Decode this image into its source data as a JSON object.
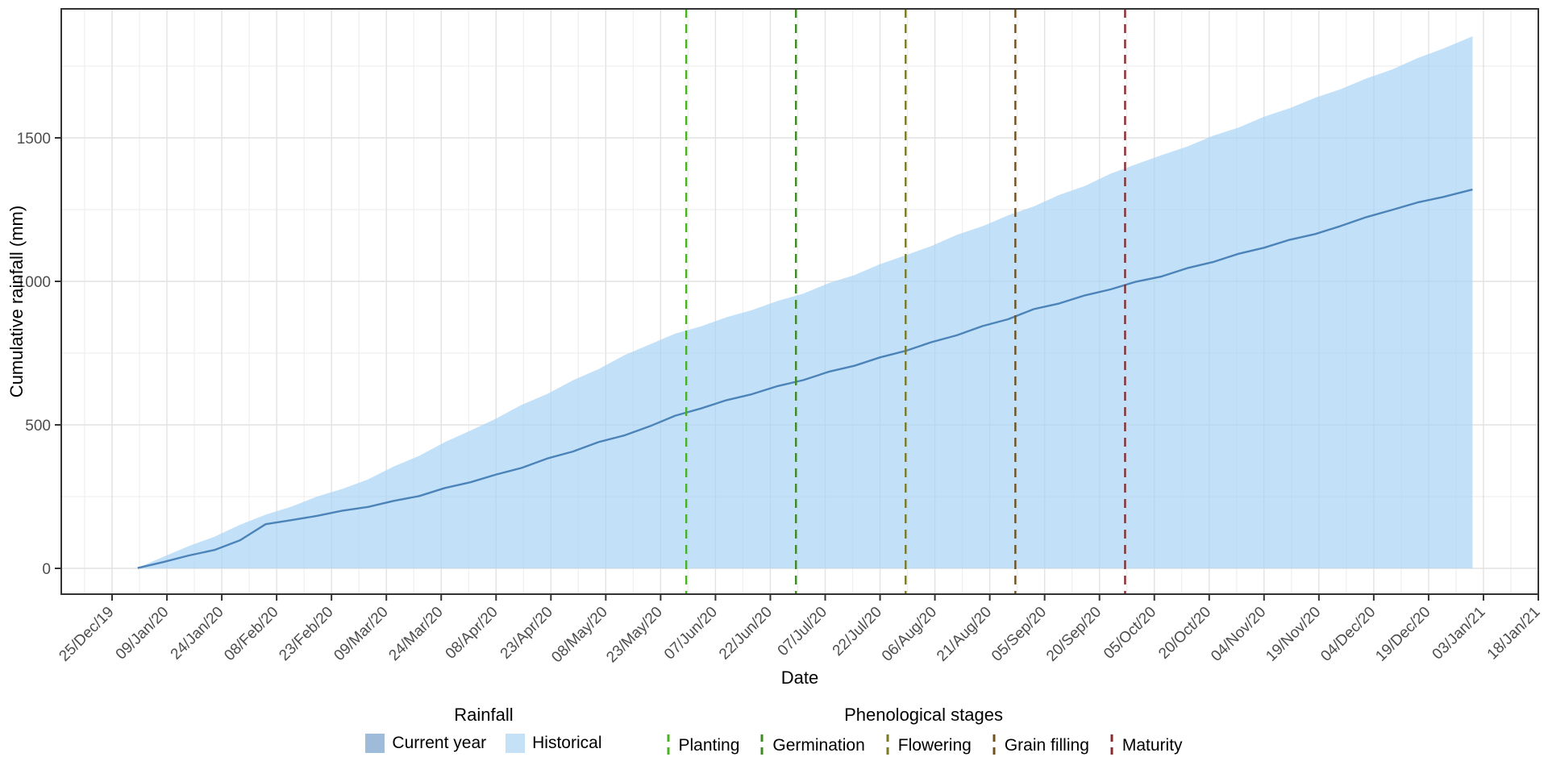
{
  "chart_data": {
    "type": "area",
    "title": "",
    "xlabel": "Date",
    "ylabel": "Cumulative rainfall (mm)",
    "x_tick_labels": [
      "25/Dec/19",
      "09/Jan/20",
      "24/Jan/20",
      "08/Feb/20",
      "23/Feb/20",
      "09/Mar/20",
      "24/Mar/20",
      "08/Apr/20",
      "23/Apr/20",
      "08/May/20",
      "23/May/20",
      "07/Jun/20",
      "22/Jun/20",
      "07/Jul/20",
      "22/Jul/20",
      "06/Aug/20",
      "21/Aug/20",
      "05/Sep/20",
      "20/Sep/20",
      "05/Oct/20",
      "20/Oct/20",
      "04/Nov/20",
      "19/Nov/20",
      "04/Dec/20",
      "19/Dec/20",
      "03/Jan/21",
      "18/Jan/21"
    ],
    "x_tick_interval_days": 15,
    "x_domain_days": [
      0,
      390
    ],
    "ylim": [
      0,
      1950
    ],
    "y_ticks": [
      0,
      500,
      1000,
      1500
    ],
    "y_minor_ticks": [
      250,
      750,
      1250,
      1750
    ],
    "grid": true,
    "legend_position": "bottom",
    "days": [
      7,
      14,
      21,
      28,
      35,
      42,
      49,
      56,
      63,
      70,
      77,
      84,
      91,
      98,
      105,
      112,
      119,
      126,
      133,
      140,
      147,
      154,
      161,
      168,
      175,
      182,
      189,
      196,
      203,
      210,
      217,
      224,
      231,
      238,
      245,
      252,
      259,
      266,
      273,
      280,
      287,
      294,
      301,
      308,
      315,
      322,
      329,
      336,
      343,
      350,
      357,
      364,
      372
    ],
    "series": [
      {
        "name": "Historical",
        "type": "area",
        "color": "#A8D4F5",
        "values": [
          2,
          40,
          78,
          110,
          152,
          187,
          215,
          250,
          277,
          310,
          355,
          392,
          440,
          480,
          522,
          570,
          608,
          655,
          694,
          742,
          780,
          818,
          843,
          875,
          900,
          932,
          957,
          994,
          1022,
          1060,
          1091,
          1123,
          1162,
          1192,
          1230,
          1261,
          1301,
          1332,
          1375,
          1408,
          1440,
          1470,
          1507,
          1536,
          1574,
          1603,
          1640,
          1670,
          1707,
          1738,
          1778,
          1811,
          1854
        ]
      },
      {
        "name": "Current year",
        "type": "line",
        "color": "#4C83B9",
        "values": [
          1,
          22,
          45,
          64,
          98,
          154,
          168,
          183,
          201,
          214,
          235,
          252,
          280,
          300,
          327,
          350,
          383,
          407,
          440,
          463,
          495,
          532,
          557,
          586,
          607,
          635,
          656,
          685,
          706,
          735,
          758,
          788,
          812,
          844,
          868,
          903,
          923,
          951,
          972,
          999,
          1017,
          1046,
          1067,
          1096,
          1117,
          1145,
          1165,
          1193,
          1224,
          1249,
          1275,
          1294,
          1320
        ]
      }
    ],
    "stages": [
      {
        "label": "Planting",
        "day": 157,
        "color": "#47B41F"
      },
      {
        "label": "Germination",
        "day": 187,
        "color": "#3D8B21"
      },
      {
        "label": "Flowering",
        "day": 217,
        "color": "#7B7A21"
      },
      {
        "label": "Grain filling",
        "day": 247,
        "color": "#70501C"
      },
      {
        "label": "Maturity",
        "day": 277,
        "color": "#8B2A2E"
      }
    ]
  },
  "legend": {
    "rainfall": {
      "title": "Rainfall",
      "items": [
        {
          "label": "Current year",
          "color": "#9EBCD9"
        },
        {
          "label": "Historical",
          "color": "#C5E1F5"
        }
      ]
    },
    "stages": {
      "title": "Phenological stages"
    }
  },
  "style": {
    "grid_major_color": "#E2E2E2",
    "grid_minor_color": "#EFEFEF",
    "panel_border_color": "#333333",
    "tick_color": "#333333"
  }
}
